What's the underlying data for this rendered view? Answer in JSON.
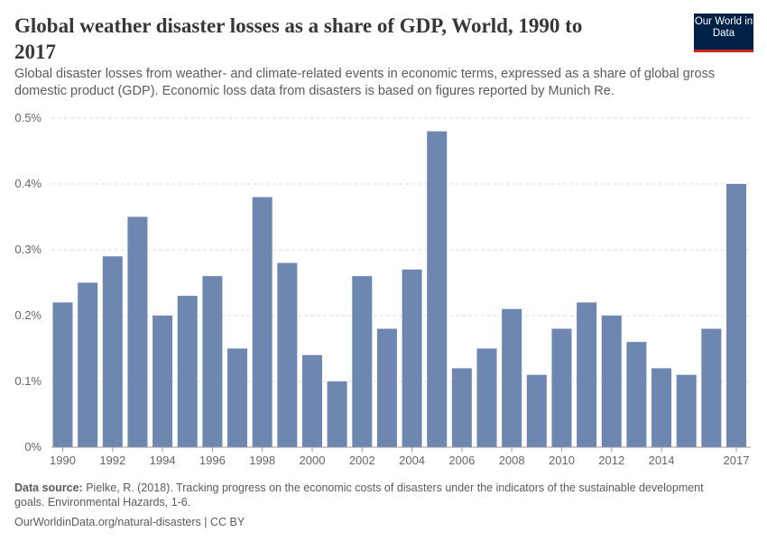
{
  "header": {
    "title": "Global weather disaster losses as a share of GDP, World, 1990 to 2017",
    "subtitle": "Global disaster losses from weather- and climate-related events in economic terms, expressed as a share of global gross domestic product (GDP). Economic loss data from disasters is based on figures reported by Munich Re.",
    "logo_text": "Our World in Data"
  },
  "chart_data": {
    "type": "bar",
    "categories": [
      "1990",
      "1991",
      "1992",
      "1993",
      "1994",
      "1995",
      "1996",
      "1997",
      "1998",
      "1999",
      "2000",
      "2001",
      "2002",
      "2003",
      "2004",
      "2005",
      "2006",
      "2007",
      "2008",
      "2009",
      "2010",
      "2011",
      "2012",
      "2013",
      "2014",
      "2015",
      "2016",
      "2017"
    ],
    "values": [
      0.22,
      0.25,
      0.29,
      0.35,
      0.2,
      0.23,
      0.26,
      0.15,
      0.38,
      0.28,
      0.14,
      0.1,
      0.26,
      0.18,
      0.27,
      0.48,
      0.12,
      0.15,
      0.21,
      0.11,
      0.18,
      0.22,
      0.2,
      0.16,
      0.12,
      0.11,
      0.18,
      0.4
    ],
    "unit": "%",
    "ylim": [
      0,
      0.5
    ],
    "yticks": [
      "0%",
      "0.1%",
      "0.2%",
      "0.3%",
      "0.4%",
      "0.5%"
    ],
    "xtick_labels": [
      "1990",
      "1992",
      "1994",
      "1996",
      "1998",
      "2000",
      "2002",
      "2004",
      "2006",
      "2008",
      "2010",
      "2012",
      "2014",
      "2017"
    ],
    "grid": "horizontal dashed",
    "bar_color": "#6d87b1"
  },
  "footer": {
    "source_label": "Data source:",
    "source_text": "Pielke, R. (2018). Tracking progress on the economic costs of disasters under the indicators of the sustainable development goals. Environmental Hazards, 1-6.",
    "url": "OurWorldinData.org/natural-disasters | CC BY"
  }
}
